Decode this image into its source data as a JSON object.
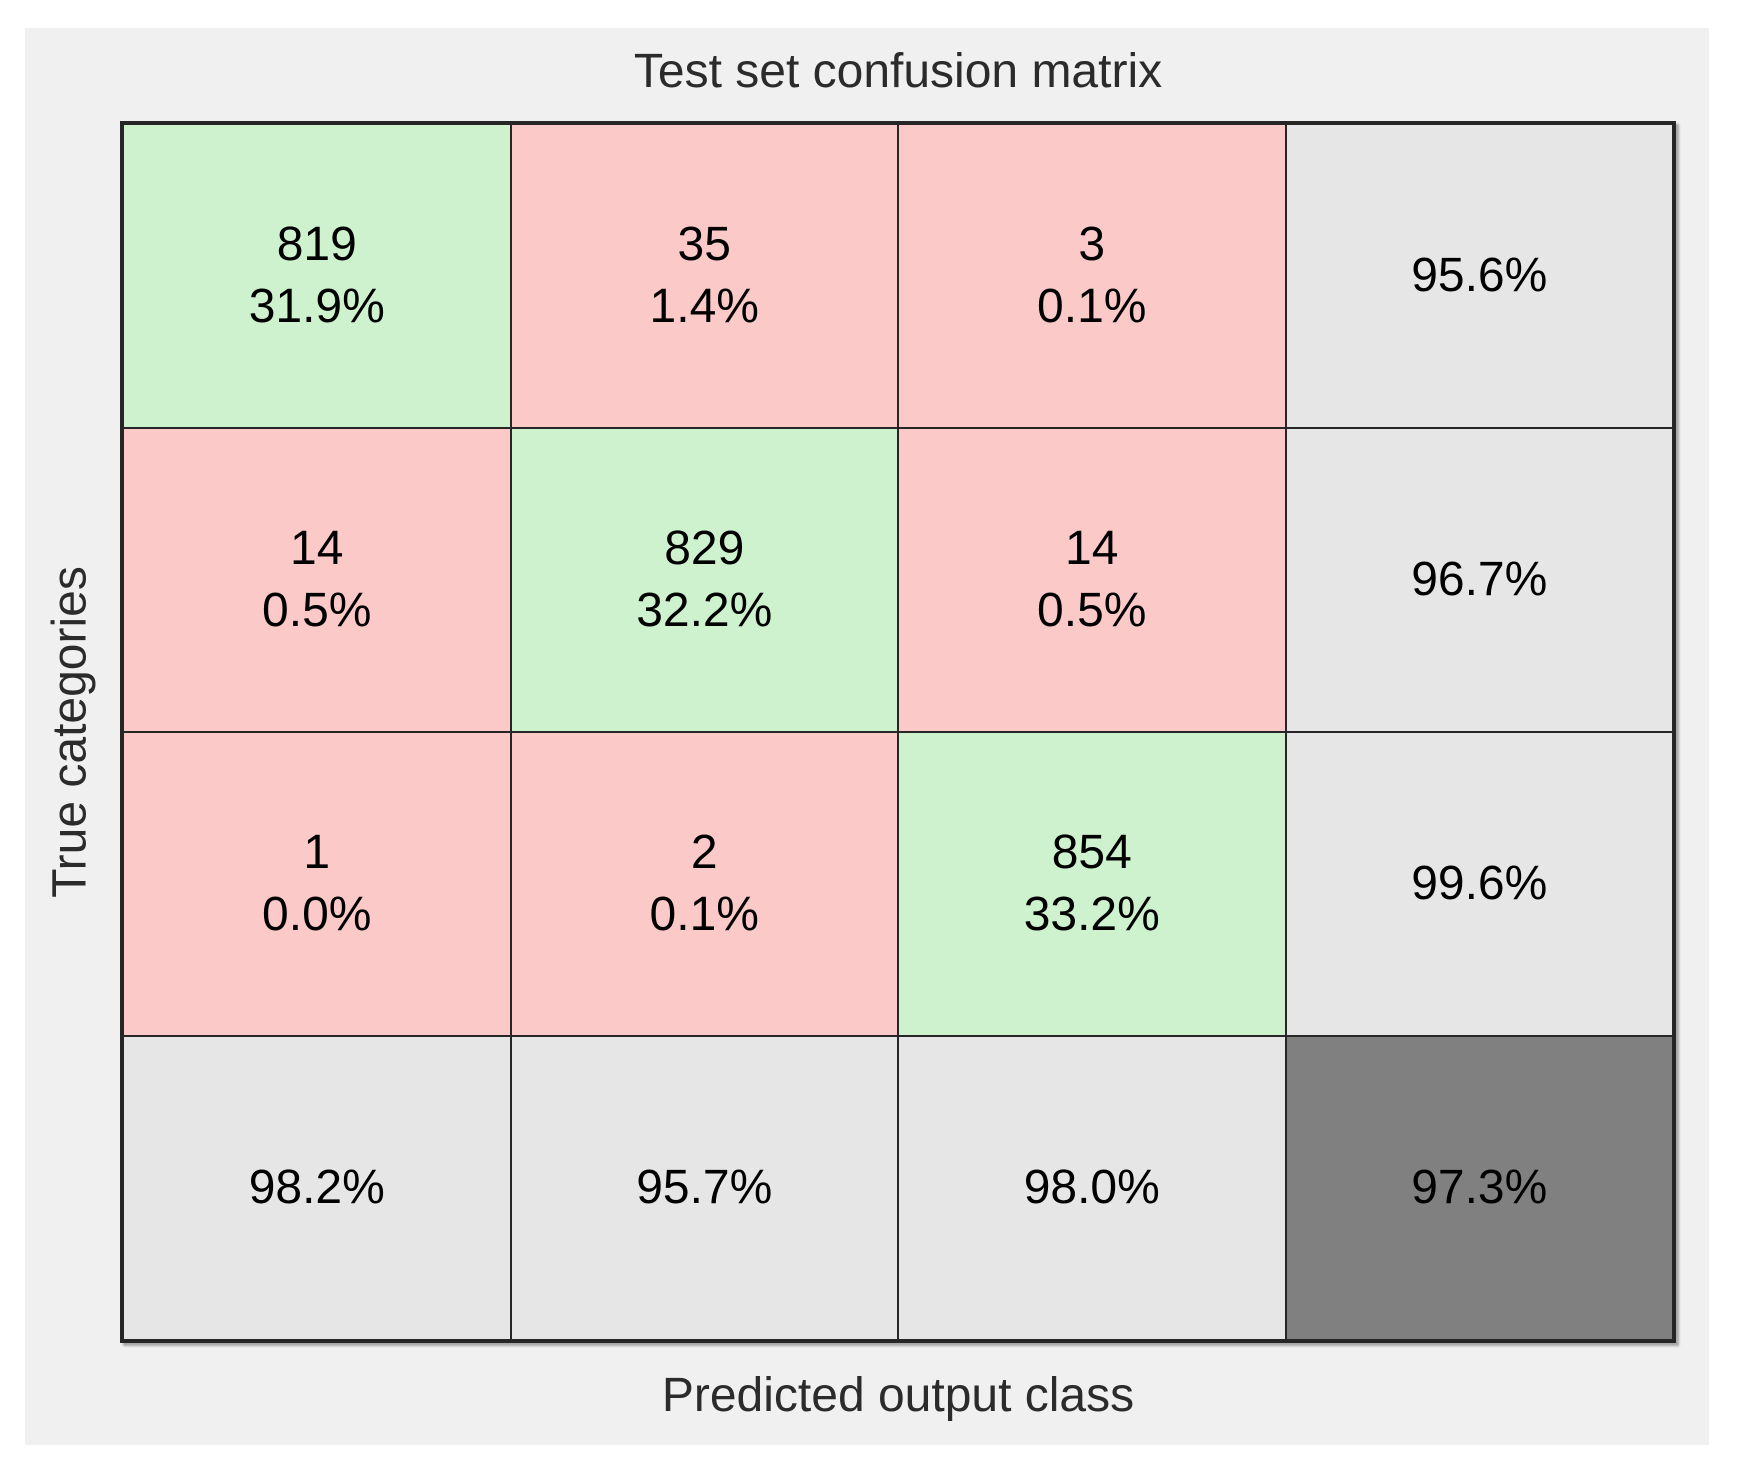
{
  "chart_data": {
    "type": "heatmap",
    "subtype": "confusion-matrix",
    "title": "Test set confusion matrix",
    "xlabel": "Predicted output class",
    "ylabel": "True categories",
    "num_classes": 3,
    "grid": "on",
    "legend_position": "none",
    "counts": [
      [
        819,
        35,
        3
      ],
      [
        14,
        829,
        14
      ],
      [
        1,
        2,
        854
      ]
    ],
    "cell_percents": [
      [
        "31.9%",
        "1.4%",
        "0.1%"
      ],
      [
        "0.5%",
        "32.2%",
        "0.5%"
      ],
      [
        "0.0%",
        "0.1%",
        "33.2%"
      ]
    ],
    "row_accuracy": [
      "95.6%",
      "96.7%",
      "99.6%"
    ],
    "col_accuracy": [
      "98.2%",
      "95.7%",
      "98.0%"
    ],
    "overall_accuracy": "97.3%",
    "colors": {
      "diagonal": "#cdf2cd",
      "off_diagonal": "#fcc9c9",
      "summary": "#e6e6e6",
      "overall": "#808080",
      "figure_background": "#f0f0f0",
      "grid_line": "#262626"
    }
  }
}
